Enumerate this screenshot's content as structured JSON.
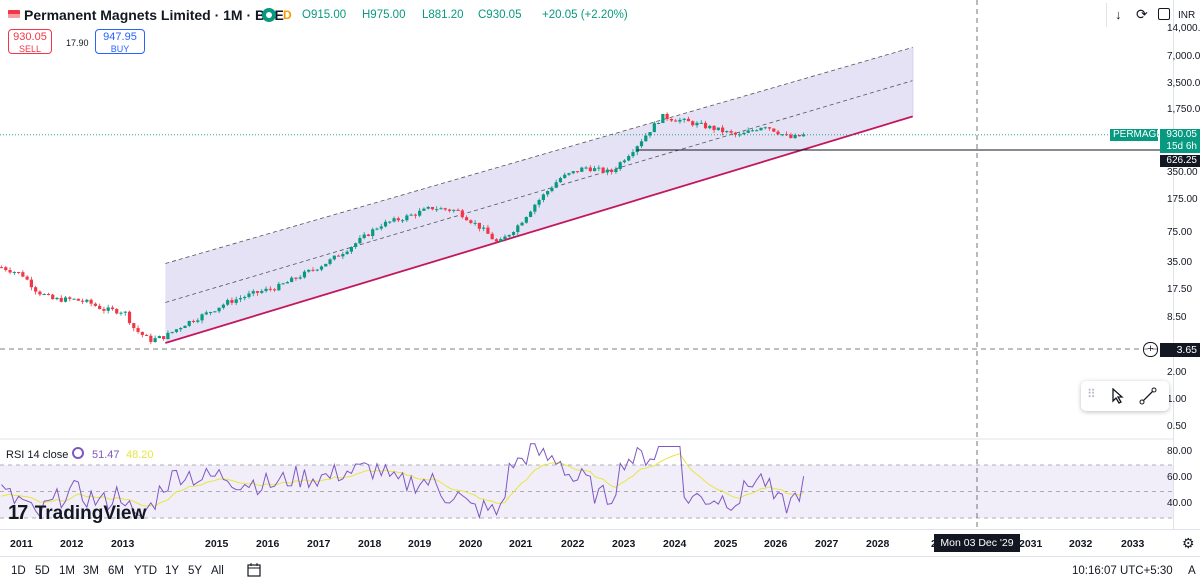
{
  "header": {
    "title": "Permanent Magnets Limited · 1M · BSE",
    "market_status": "D",
    "open": "O915.00",
    "high": "H975.00",
    "low": "L881.20",
    "close": "C930.05",
    "change": "+20.05 (+2.20%)",
    "currency": "INR",
    "icons": [
      "flag-icon",
      "eye-icon",
      "download-arrow-icon",
      "refresh-icon",
      "fullscreen-icon"
    ]
  },
  "trade": {
    "sell_price": "930.05",
    "sell_label": "SELL",
    "spread": "17.90",
    "buy_price": "947.95",
    "buy_label": "BUY"
  },
  "price_axis": {
    "ticks": [
      "14,000.",
      "7,000.0",
      "3,500.0",
      "1,750.0",
      "350.00",
      "175.00",
      "75.00",
      "35.00",
      "17.50",
      "8.50",
      "2.00",
      "1.00",
      "0.50"
    ],
    "symbol_tag": "PERMAGN",
    "last_price": "930.05",
    "countdown": "15d 6h",
    "line_price": "626.25",
    "crosshair_price": "3.65"
  },
  "rsi": {
    "label": "RSI 14 close",
    "value": "51.47",
    "ma_value": "48.20",
    "ticks": [
      "80.00",
      "60.00",
      "40.00"
    ]
  },
  "time_axis": {
    "years": [
      "2011",
      "2012",
      "2013",
      "2015",
      "2016",
      "2017",
      "2018",
      "2019",
      "2020",
      "2021",
      "2022",
      "2023",
      "2024",
      "2025",
      "2026",
      "2027",
      "2028",
      "202",
      "2031",
      "2032",
      "2033"
    ],
    "crosshair_date": "Mon 03 Dec '29"
  },
  "bottom_bar": {
    "timeframes": [
      "1D",
      "5D",
      "1M",
      "3M",
      "6M",
      "YTD",
      "1Y",
      "5Y",
      "All"
    ],
    "clock": "10:16:07 UTC+5:30",
    "adjust": "A"
  },
  "branding": {
    "logo_text": "TradingView"
  },
  "colors": {
    "up": "#089981",
    "down": "#f23645",
    "channel_fill": "#d6cff0",
    "rsi_line": "#7e57c2",
    "rsi_ma": "#e6e640",
    "support_line": "#c2185b",
    "tag_green": "#089981"
  },
  "chart_data": {
    "type": "candlestick",
    "title": "Permanent Magnets Limited · 1M · BSE",
    "ylabel": "INR",
    "scale": "log",
    "x_range": [
      2010.5,
      2033.5
    ],
    "y_range": [
      0.5,
      14000
    ],
    "last_close": 930.05,
    "horizontal_line": 626.25,
    "candles_approx": [
      {
        "x": 2010.6,
        "v": 30
      },
      {
        "x": 2011.0,
        "v": 25
      },
      {
        "x": 2011.3,
        "v": 16
      },
      {
        "x": 2011.6,
        "v": 13
      },
      {
        "x": 2012.0,
        "v": 13
      },
      {
        "x": 2012.3,
        "v": 12
      },
      {
        "x": 2012.6,
        "v": 10
      },
      {
        "x": 2013.0,
        "v": 9.5
      },
      {
        "x": 2013.2,
        "v": 6
      },
      {
        "x": 2013.5,
        "v": 4.5
      },
      {
        "x": 2013.8,
        "v": 5
      },
      {
        "x": 2014.2,
        "v": 7
      },
      {
        "x": 2014.6,
        "v": 9
      },
      {
        "x": 2015.0,
        "v": 12
      },
      {
        "x": 2015.5,
        "v": 15
      },
      {
        "x": 2016.0,
        "v": 18
      },
      {
        "x": 2016.5,
        "v": 25
      },
      {
        "x": 2017.0,
        "v": 35
      },
      {
        "x": 2017.5,
        "v": 55
      },
      {
        "x": 2018.0,
        "v": 90
      },
      {
        "x": 2018.5,
        "v": 110
      },
      {
        "x": 2019.0,
        "v": 140
      },
      {
        "x": 2019.5,
        "v": 130
      },
      {
        "x": 2020.0,
        "v": 80
      },
      {
        "x": 2020.3,
        "v": 55
      },
      {
        "x": 2020.7,
        "v": 90
      },
      {
        "x": 2021.0,
        "v": 150
      },
      {
        "x": 2021.5,
        "v": 300
      },
      {
        "x": 2022.0,
        "v": 400
      },
      {
        "x": 2022.5,
        "v": 350
      },
      {
        "x": 2023.0,
        "v": 700
      },
      {
        "x": 2023.5,
        "v": 1500
      },
      {
        "x": 2024.0,
        "v": 1300
      },
      {
        "x": 2024.5,
        "v": 1100
      },
      {
        "x": 2025.0,
        "v": 900
      },
      {
        "x": 2025.5,
        "v": 1200
      },
      {
        "x": 2026.0,
        "v": 850
      },
      {
        "x": 2026.3,
        "v": 930
      }
    ],
    "channel": {
      "upper": [
        {
          "x": 2013.8,
          "y": 33
        },
        {
          "x": 2028.4,
          "y": 9000
        }
      ],
      "middle": [
        {
          "x": 2013.8,
          "y": 12
        },
        {
          "x": 2028.4,
          "y": 3800
        }
      ],
      "lower": [
        {
          "x": 2013.8,
          "y": 4.2
        },
        {
          "x": 2028.4,
          "y": 1500
        }
      ]
    },
    "rsi_series": {
      "name": "RSI 14 close",
      "last": 51.47,
      "ma_last": 48.2,
      "levels": [
        70,
        50,
        30
      ]
    }
  }
}
